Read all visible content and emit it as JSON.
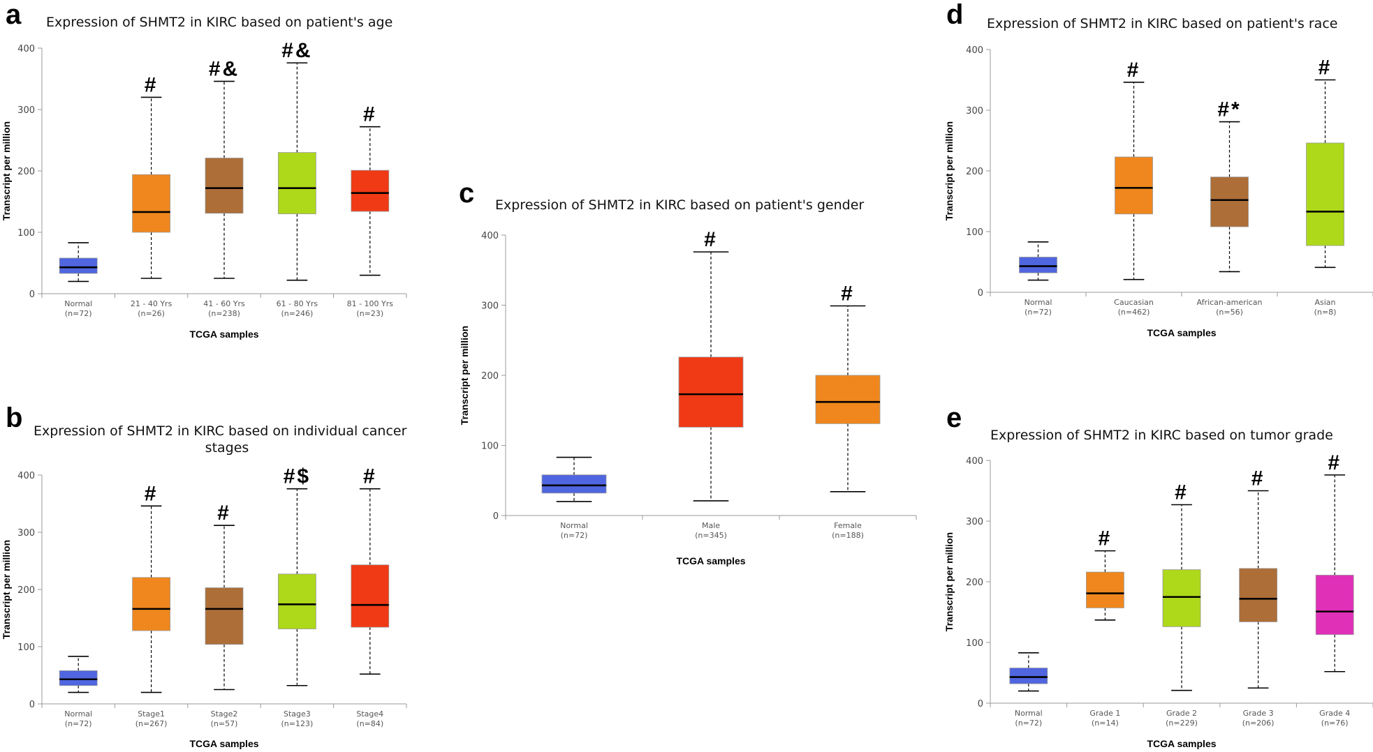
{
  "chart_data": [
    {
      "panel": "a",
      "type": "boxplot",
      "title": "Expression of SHMT2 in KIRC based on patient's age",
      "xlabel": "TCGA samples",
      "ylabel": "Transcript per million",
      "ylim": [
        0,
        400
      ],
      "yticks": [
        0,
        100,
        200,
        300,
        400
      ],
      "categories": [
        {
          "name": "Normal",
          "n": "(n=72)",
          "color": "#5066e0",
          "min": 20,
          "q1": 33,
          "median": 43,
          "q3": 58,
          "max": 83,
          "sig": ""
        },
        {
          "name": "21 - 40 Yrs",
          "n": "(n=26)",
          "color": "#f0871e",
          "min": 25,
          "q1": 100,
          "median": 133,
          "q3": 194,
          "max": 320,
          "sig": "#"
        },
        {
          "name": "41 - 60 Yrs",
          "n": "(n=238)",
          "color": "#ad6e38",
          "min": 25,
          "q1": 131,
          "median": 172,
          "q3": 221,
          "max": 346,
          "sig": "#&"
        },
        {
          "name": "61 - 80 Yrs",
          "n": "(n=246)",
          "color": "#aed81a",
          "min": 22,
          "q1": 130,
          "median": 172,
          "q3": 230,
          "max": 376,
          "sig": "#&"
        },
        {
          "name": "81 - 100 Yrs",
          "n": "(n=23)",
          "color": "#f03a16",
          "min": 30,
          "q1": 134,
          "median": 164,
          "q3": 201,
          "max": 272,
          "sig": "#"
        }
      ]
    },
    {
      "panel": "b",
      "type": "boxplot",
      "title": "Expression of SHMT2 in KIRC based on individual cancer",
      "title2": "stages",
      "xlabel": "TCGA samples",
      "ylabel": "Transcript per million",
      "ylim": [
        0,
        400
      ],
      "yticks": [
        0,
        100,
        200,
        300,
        400
      ],
      "categories": [
        {
          "name": "Normal",
          "n": "(n=72)",
          "color": "#5066e0",
          "min": 20,
          "q1": 32,
          "median": 43,
          "q3": 58,
          "max": 83,
          "sig": ""
        },
        {
          "name": "Stage1",
          "n": "(n=267)",
          "color": "#f0871e",
          "min": 20,
          "q1": 128,
          "median": 166,
          "q3": 221,
          "max": 346,
          "sig": "#"
        },
        {
          "name": "Stage2",
          "n": "(n=57)",
          "color": "#ad6e38",
          "min": 25,
          "q1": 104,
          "median": 166,
          "q3": 203,
          "max": 312,
          "sig": "#"
        },
        {
          "name": "Stage3",
          "n": "(n=123)",
          "color": "#aed81a",
          "min": 32,
          "q1": 131,
          "median": 174,
          "q3": 227,
          "max": 376,
          "sig": "#$"
        },
        {
          "name": "Stage4",
          "n": "(n=84)",
          "color": "#f03a16",
          "min": 52,
          "q1": 134,
          "median": 173,
          "q3": 243,
          "max": 376,
          "sig": "#"
        }
      ]
    },
    {
      "panel": "c",
      "type": "boxplot",
      "title": "Expression of SHMT2 in KIRC based on patient's gender",
      "xlabel": "TCGA samples",
      "ylabel": "Transcript per million",
      "ylim": [
        0,
        400
      ],
      "yticks": [
        0,
        100,
        200,
        300,
        400
      ],
      "categories": [
        {
          "name": "Normal",
          "n": "(n=72)",
          "color": "#5066e0",
          "min": 20,
          "q1": 32,
          "median": 43,
          "q3": 58,
          "max": 83,
          "sig": ""
        },
        {
          "name": "Male",
          "n": "(n=345)",
          "color": "#f03a16",
          "min": 21,
          "q1": 126,
          "median": 173,
          "q3": 226,
          "max": 376,
          "sig": "#"
        },
        {
          "name": "Female",
          "n": "(n=188)",
          "color": "#f0871e",
          "min": 34,
          "q1": 131,
          "median": 162,
          "q3": 200,
          "max": 299,
          "sig": "#"
        }
      ]
    },
    {
      "panel": "d",
      "type": "boxplot",
      "title": "Expression of SHMT2 in KIRC based on patient's race",
      "xlabel": "TCGA samples",
      "ylabel": "Transcript per million",
      "ylim": [
        0,
        400
      ],
      "yticks": [
        0,
        100,
        200,
        300,
        400
      ],
      "categories": [
        {
          "name": "Normal",
          "n": "(n=72)",
          "color": "#5066e0",
          "min": 20,
          "q1": 32,
          "median": 43,
          "q3": 58,
          "max": 83,
          "sig": ""
        },
        {
          "name": "Caucasian",
          "n": "(n=462)",
          "color": "#f0871e",
          "min": 21,
          "q1": 129,
          "median": 172,
          "q3": 223,
          "max": 346,
          "sig": "#"
        },
        {
          "name": "African-american",
          "n": "(n=56)",
          "color": "#ad6e38",
          "min": 34,
          "q1": 108,
          "median": 152,
          "q3": 190,
          "max": 281,
          "sig": "#*"
        },
        {
          "name": "Asian",
          "n": "(n=8)",
          "color": "#aed81a",
          "min": 41,
          "q1": 77,
          "median": 133,
          "q3": 246,
          "max": 350,
          "sig": "#"
        }
      ]
    },
    {
      "panel": "e",
      "type": "boxplot",
      "title": "Expression of SHMT2 in KIRC based on tumor grade",
      "xlabel": "TCGA samples",
      "ylabel": "Transcript per million",
      "ylim": [
        0,
        400
      ],
      "yticks": [
        0,
        100,
        200,
        300,
        400
      ],
      "categories": [
        {
          "name": "Normal",
          "n": "(n=72)",
          "color": "#5066e0",
          "min": 20,
          "q1": 32,
          "median": 43,
          "q3": 58,
          "max": 83,
          "sig": ""
        },
        {
          "name": "Grade 1",
          "n": "(n=14)",
          "color": "#f0871e",
          "min": 137,
          "q1": 157,
          "median": 181,
          "q3": 216,
          "max": 251,
          "sig": "#"
        },
        {
          "name": "Grade 2",
          "n": "(n=229)",
          "color": "#aed81a",
          "min": 21,
          "q1": 126,
          "median": 175,
          "q3": 220,
          "max": 327,
          "sig": "#"
        },
        {
          "name": "Grade 3",
          "n": "(n=206)",
          "color": "#ad6e38",
          "min": 25,
          "q1": 134,
          "median": 172,
          "q3": 222,
          "max": 350,
          "sig": "#"
        },
        {
          "name": "Grade 4",
          "n": "(n=76)",
          "color": "#e030b8",
          "min": 52,
          "q1": 113,
          "median": 151,
          "q3": 211,
          "max": 376,
          "sig": "#"
        }
      ]
    }
  ]
}
